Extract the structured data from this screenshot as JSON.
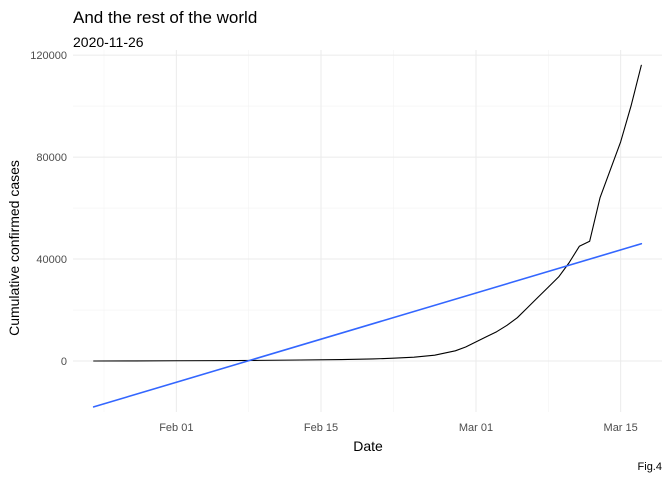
{
  "chart_data": {
    "type": "line",
    "title": "And the rest of the world",
    "subtitle": "2020-11-26",
    "xlabel": "Date",
    "ylabel": "Cumulative confirmed cases",
    "caption": "Fig.4",
    "xlim": [
      "2020-01-22",
      "2020-03-19"
    ],
    "ylim": [
      -20000,
      122000
    ],
    "grid": true,
    "x_ticks": [
      {
        "date": "2020-02-01",
        "label": "Feb 01"
      },
      {
        "date": "2020-02-15",
        "label": "Feb 15"
      },
      {
        "date": "2020-03-01",
        "label": "Mar 01"
      },
      {
        "date": "2020-03-15",
        "label": "Mar 15"
      }
    ],
    "y_ticks": [
      {
        "value": 0,
        "label": "0"
      },
      {
        "value": 40000,
        "label": "40000"
      },
      {
        "value": 80000,
        "label": "80000"
      },
      {
        "value": 120000,
        "label": "120000"
      }
    ],
    "series": [
      {
        "color": "#000000",
        "points": [
          [
            "2020-01-24",
            0
          ],
          [
            "2020-01-28",
            50
          ],
          [
            "2020-02-01",
            100
          ],
          [
            "2020-02-05",
            150
          ],
          [
            "2020-02-09",
            250
          ],
          [
            "2020-02-13",
            400
          ],
          [
            "2020-02-17",
            550
          ],
          [
            "2020-02-20",
            800
          ],
          [
            "2020-02-22",
            1100
          ],
          [
            "2020-02-24",
            1500
          ],
          [
            "2020-02-26",
            2300
          ],
          [
            "2020-02-28",
            4000
          ],
          [
            "2020-02-29",
            5500
          ],
          [
            "2020-03-01",
            7500
          ],
          [
            "2020-03-02",
            9500
          ],
          [
            "2020-03-03",
            11500
          ],
          [
            "2020-03-04",
            14000
          ],
          [
            "2020-03-05",
            17000
          ],
          [
            "2020-03-06",
            21000
          ],
          [
            "2020-03-07",
            25000
          ],
          [
            "2020-03-08",
            29000
          ],
          [
            "2020-03-09",
            33000
          ],
          [
            "2020-03-10",
            38500
          ],
          [
            "2020-03-11",
            45000
          ],
          [
            "2020-03-12",
            47000
          ],
          [
            "2020-03-13",
            64000
          ],
          [
            "2020-03-14",
            75000
          ],
          [
            "2020-03-15",
            86000
          ],
          [
            "2020-03-16",
            100000
          ],
          [
            "2020-03-17",
            116000
          ]
        ]
      },
      {
        "color": "#3366ff",
        "points": [
          [
            "2020-01-24",
            -18000
          ],
          [
            "2020-03-17",
            46000
          ]
        ]
      }
    ]
  }
}
